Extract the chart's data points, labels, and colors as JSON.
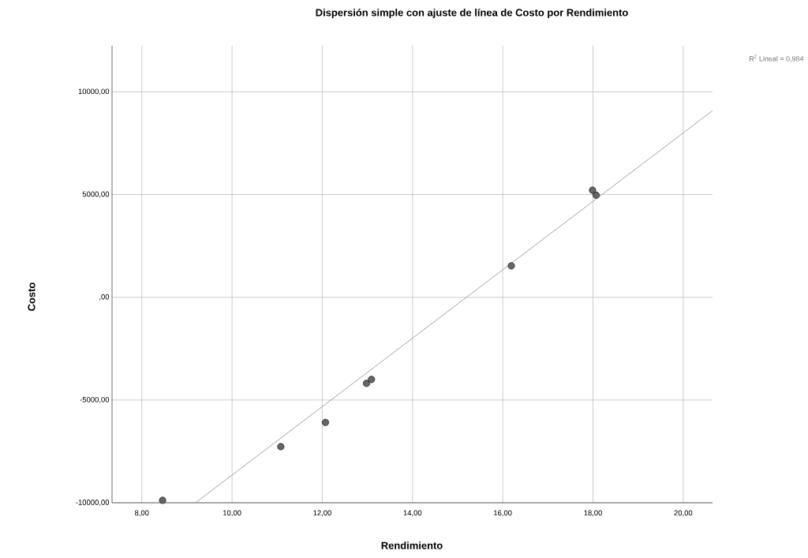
{
  "chart_data": {
    "type": "scatter",
    "title": "Dispersión simple con ajuste de línea de Costo por Rendimiento",
    "xlabel": "Rendimiento",
    "ylabel": "Costo",
    "annotations": [
      "R$^{2}$ Lineal = 0,984"
    ],
    "xlim": [
      7.34,
      20.65
    ],
    "ylim": [
      -10000,
      12240
    ],
    "xticks": [
      {
        "value": 8,
        "label": "8,00"
      },
      {
        "value": 10,
        "label": "10,00"
      },
      {
        "value": 12,
        "label": "12,00"
      },
      {
        "value": 14,
        "label": "14,00"
      },
      {
        "value": 16,
        "label": "16,00"
      },
      {
        "value": 18,
        "label": "18,00"
      },
      {
        "value": 20,
        "label": "20,00"
      }
    ],
    "yticks": [
      {
        "value": -10000,
        "label": "-10000,00"
      },
      {
        "value": -5000,
        "label": "-5000,00"
      },
      {
        "value": 0,
        "label": ",00"
      },
      {
        "value": 5000,
        "label": "5000,00"
      },
      {
        "value": 10000,
        "label": "10000,00"
      }
    ],
    "grid": true,
    "series": [
      {
        "marker": "circle",
        "color": "#666666",
        "x": [
          8.46,
          11.08,
          12.07,
          12.98,
          13.09,
          16.19,
          17.99,
          18.07
        ],
        "values": [
          -9880,
          -7270,
          -6090,
          -4190,
          -4000,
          1530,
          5210,
          4970
        ]
      },
      {
        "type": "line",
        "color": "#999999",
        "x": [
          9.19,
          20.65
        ],
        "values": [
          -10000,
          9080
        ]
      }
    ]
  }
}
